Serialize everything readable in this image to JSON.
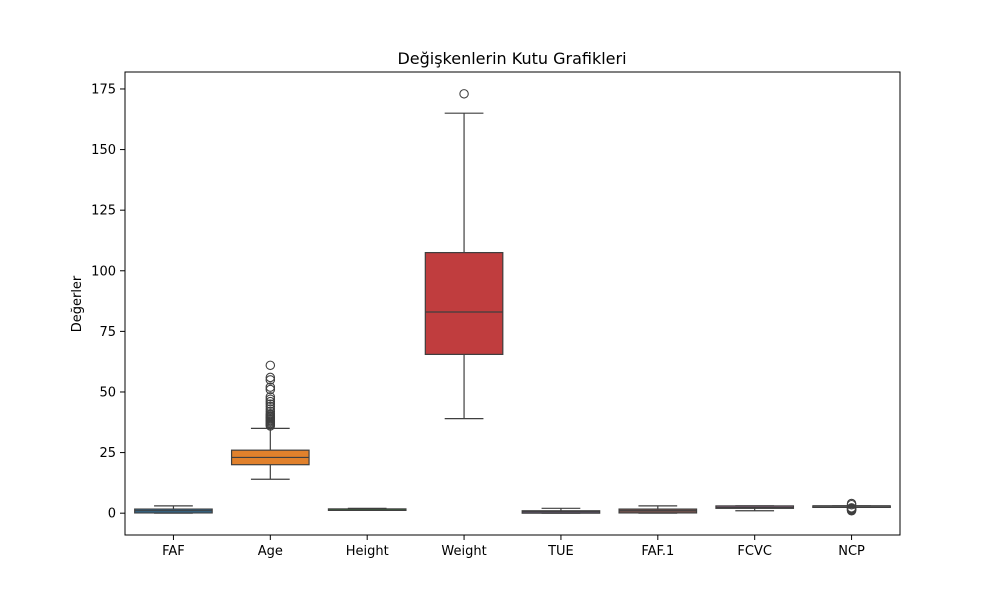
{
  "chart_data": {
    "type": "box",
    "title": "Değişkenlerin Kutu Grafikleri",
    "xlabel": "",
    "ylabel": "Değerler",
    "ylim": [
      -9,
      182
    ],
    "yticks": [
      0,
      25,
      50,
      75,
      100,
      125,
      150,
      175
    ],
    "grid": false,
    "categories": [
      "FAF",
      "Age",
      "Height",
      "Weight",
      "TUE",
      "FAF.1",
      "FCVC",
      "NCP"
    ],
    "boxes": [
      {
        "category": "FAF",
        "whisker_low": 0,
        "q1": 0.1,
        "median": 1.0,
        "q3": 1.7,
        "whisker_high": 3,
        "outliers": [],
        "color": "#3274a1"
      },
      {
        "category": "Age",
        "whisker_low": 14,
        "q1": 20,
        "median": 23,
        "q3": 26,
        "whisker_high": 35,
        "outliers": [
          36,
          36.5,
          37,
          37.5,
          38,
          38.5,
          39,
          39.5,
          40,
          40.5,
          41,
          42,
          43,
          44,
          45,
          46,
          47,
          48,
          51,
          52,
          55,
          56,
          61
        ],
        "color": "#e1812c"
      },
      {
        "category": "Height",
        "whisker_low": 1.45,
        "q1": 1.63,
        "median": 1.7,
        "q3": 1.77,
        "whisker_high": 1.98,
        "outliers": [],
        "color": "#3a923a"
      },
      {
        "category": "Weight",
        "whisker_low": 39,
        "q1": 65.5,
        "median": 83,
        "q3": 107.5,
        "whisker_high": 165,
        "outliers": [
          173
        ],
        "color": "#c03d3e"
      },
      {
        "category": "TUE",
        "whisker_low": 0,
        "q1": 0,
        "median": 0.6,
        "q3": 1.0,
        "whisker_high": 2,
        "outliers": [],
        "color": "#9372b2"
      },
      {
        "category": "FAF.1",
        "whisker_low": 0,
        "q1": 0.1,
        "median": 1.0,
        "q3": 1.7,
        "whisker_high": 3,
        "outliers": [],
        "color": "#845b53"
      },
      {
        "category": "FCVC",
        "whisker_low": 1,
        "q1": 2,
        "median": 2.4,
        "q3": 3,
        "whisker_high": 3,
        "outliers": [],
        "color": "#d684bd"
      },
      {
        "category": "NCP",
        "whisker_low": 2.7,
        "q1": 2.7,
        "median": 3,
        "q3": 3,
        "whisker_high": 3,
        "outliers": [
          1,
          1.2,
          1.5,
          1.8,
          2.0,
          2.2,
          3.5,
          4
        ],
        "color": "#7f7f7f"
      }
    ]
  }
}
